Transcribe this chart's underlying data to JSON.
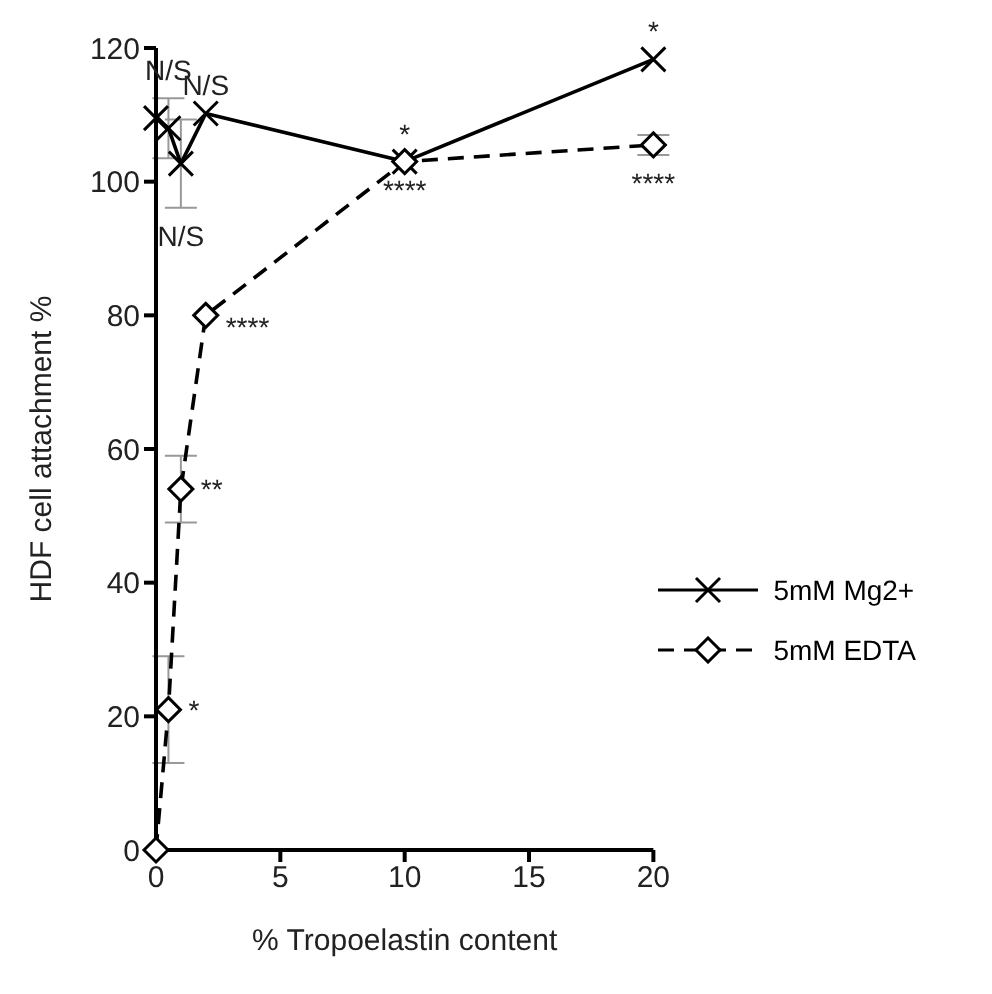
{
  "chart_data": {
    "type": "line",
    "xlabel": "% Tropoelastin content",
    "ylabel": "HDF cell attachment %",
    "xlim": [
      0,
      20
    ],
    "xticks": [
      0,
      5,
      10,
      15,
      20
    ],
    "ylim": [
      0,
      120
    ],
    "yticks": [
      0,
      20,
      40,
      60,
      80,
      100,
      120
    ],
    "grid": false,
    "legend": "right",
    "x": [
      0,
      0.5,
      1,
      2,
      10,
      20
    ],
    "series": [
      {
        "name": "5mM Mg2+",
        "color": "#000000",
        "marker": "cross",
        "line_style": "solid",
        "values": [
          109.5,
          108,
          102.7,
          110.2,
          103,
          118.3
        ],
        "errors": [
          null,
          4.5,
          6.6,
          null,
          null,
          null
        ]
      },
      {
        "name": "5mM EDTA",
        "color": "#000000",
        "marker": "diamond",
        "line_style": "dashed",
        "values": [
          0,
          21,
          54,
          80,
          103,
          105.5
        ],
        "errors": [
          null,
          8,
          5,
          null,
          null,
          1.5
        ]
      }
    ],
    "annotations": [
      {
        "text": "N/S",
        "x": 0.5,
        "y": 108
      },
      {
        "text": "N/S",
        "x": 2,
        "y": 110.2
      },
      {
        "text": "N/S",
        "x": 1,
        "y": 102.7
      },
      {
        "text": "****",
        "x": 2,
        "y": 80
      },
      {
        "text": "**",
        "x": 1,
        "y": 54
      },
      {
        "text": "*",
        "x": 0.5,
        "y": 21
      },
      {
        "text": "*",
        "x": 10,
        "y": 103
      },
      {
        "text": "****",
        "x": 10,
        "y": 103
      },
      {
        "text": "*",
        "x": 20,
        "y": 118.3
      },
      {
        "text": "****",
        "x": 20,
        "y": 105.5
      }
    ]
  }
}
